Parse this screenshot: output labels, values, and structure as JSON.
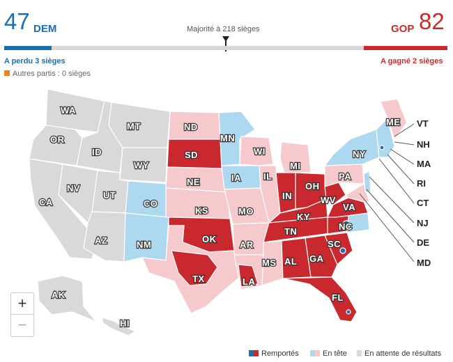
{
  "header": {
    "dem_count": "47",
    "dem_label": "DEM",
    "gop_label": "GOP",
    "gop_count": "82",
    "majority_text": "Majorité à 218 sièges",
    "dem_change": "A perdu 3 sièges",
    "gop_change": "A gagné 2 sièges",
    "others_text": "Autres partis : 0 sièges"
  },
  "progress": {
    "dem_fraction": 0.107,
    "gop_fraction": 0.188,
    "majority_fraction": 0.5
  },
  "colors": {
    "dem": "#1a6fb0",
    "gop": "#cc2a2a",
    "dem_won": "#1a6fb0",
    "gop_won": "#c8282e",
    "dem_leading": "#acd8f0",
    "gop_leading": "#f6c9cc",
    "pending": "#d9d9db",
    "others": "#e8861a"
  },
  "states": {
    "WA": "WA",
    "OR": "OR",
    "CA": "CA",
    "ID": "ID",
    "NV": "NV",
    "MT": "MT",
    "WY": "WY",
    "UT": "UT",
    "AZ": "AZ",
    "CO": "CO",
    "NM": "NM",
    "ND": "ND",
    "SD": "SD",
    "NE": "NE",
    "KS": "KS",
    "OK": "OK",
    "TX": "TX",
    "MN": "MN",
    "IA": "IA",
    "MO": "MO",
    "AR": "AR",
    "LA": "LA",
    "WI": "WI",
    "IL": "IL",
    "MI": "MI",
    "IN": "IN",
    "OH": "OH",
    "KY": "KY",
    "TN": "TN",
    "MS": "MS",
    "AL": "AL",
    "GA": "GA",
    "FL": "FL",
    "SC": "SC",
    "NC": "NC",
    "VA": "VA",
    "WV": "WV",
    "PA": "PA",
    "NY": "NY",
    "ME": "ME",
    "AK": "AK",
    "HI": "HI"
  },
  "side_labels": {
    "VT": "VT",
    "NH": "NH",
    "MA": "MA",
    "RI": "RI",
    "CT": "CT",
    "NJ": "NJ",
    "DE": "DE",
    "MD": "MD"
  },
  "zoom": {
    "in": "+",
    "out": "−"
  },
  "legend": {
    "won": "Remportés",
    "leading": "En tête",
    "pending": "En attente de résultats"
  }
}
